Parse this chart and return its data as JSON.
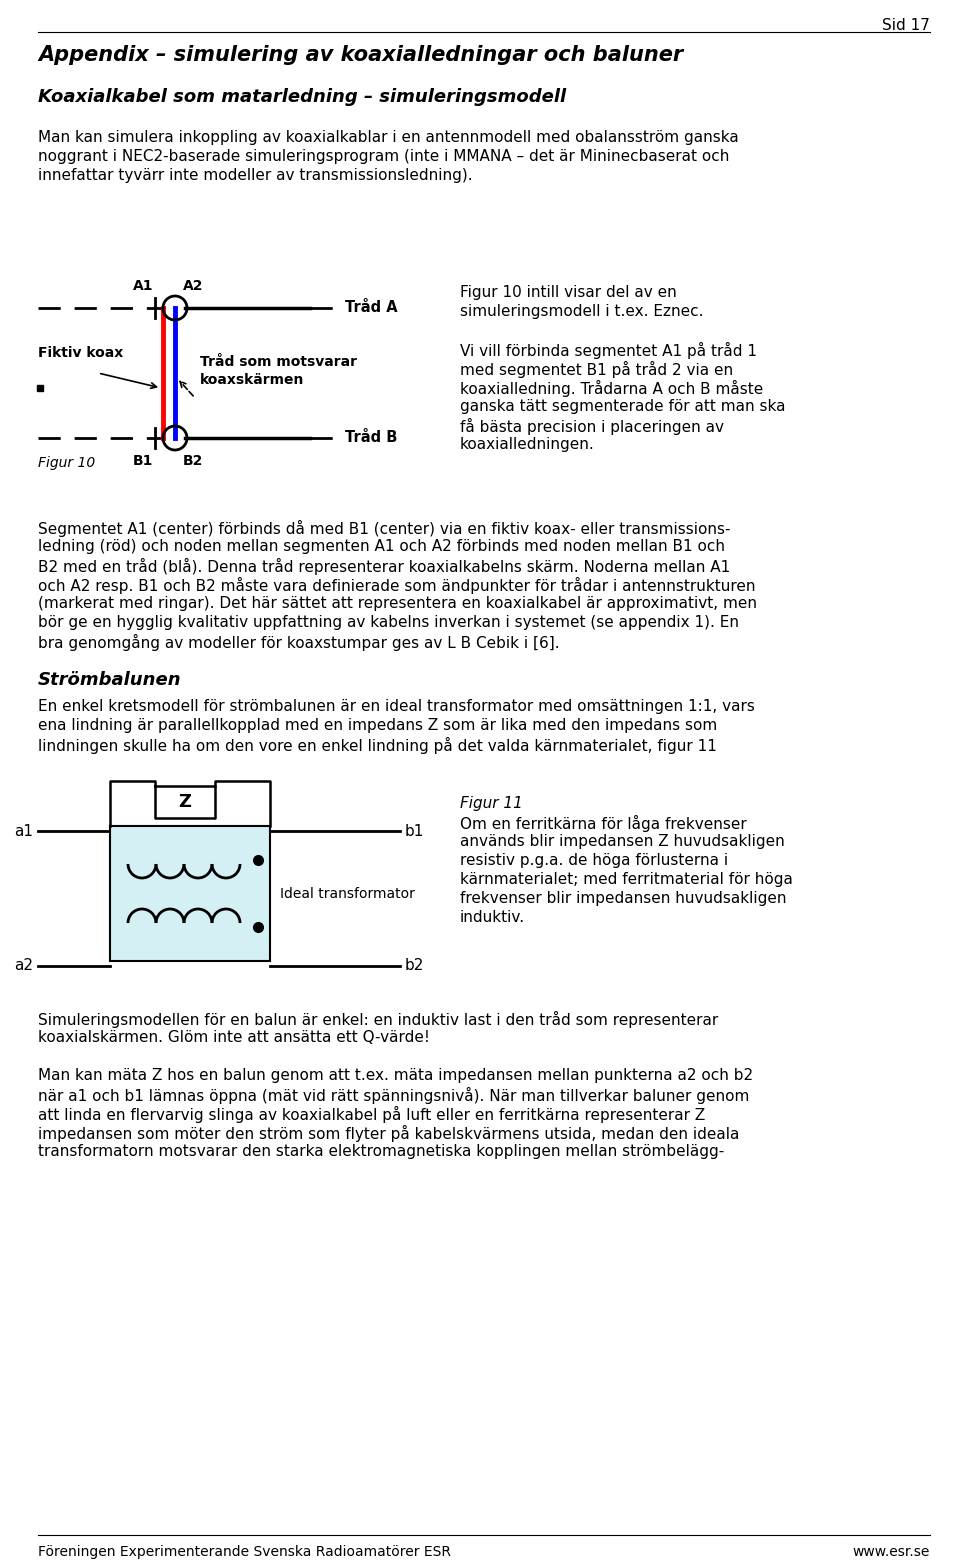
{
  "page_title": "Appendix – simulering av koaxialledningar och baluner",
  "subtitle": "Koaxialkabel som matarledning – simuleringsmodell",
  "page_number": "Sid 17",
  "body_text_1_lines": [
    "Man kan simulera inkoppling av koaxialkablar i en antennmodell med obalansström ganska",
    "noggrant i NEC2-baserade simuleringsprogram (inte i MMANA – det är Mininecbaserat och",
    "innefattar tyvärr inte modeller av transmissionsledning)."
  ],
  "fig10_caption_right_lines": [
    "Figur 10 intill visar del av en",
    "simuleringsmodell i t.ex. Eznec.",
    "",
    "Vi vill förbinda segmentet A1 på tråd 1",
    "med segmentet B1 på tråd 2 via en",
    "koaxialledning. Trådarna A och B måste",
    "ganska tätt segmenterade för att man ska",
    "få bästa precision i placeringen av",
    "koaxialledningen."
  ],
  "body_text_2_lines": [
    "Segmentet A1 (center) förbinds då med B1 (center) via en fiktiv koax- eller transmissions-",
    "ledning (röd) och noden mellan segmenten A1 och A2 förbinds med noden mellan B1 och",
    "B2 med en tråd (blå). Denna tråd representerar koaxialkabelns skärm. Noderna mellan A1",
    "och A2 resp. B1 och B2 måste vara definierade som ändpunkter för trådar i antennstrukturen",
    "(markerat med ringar). Det här sättet att representera en koaxialkabel är approximativt, men",
    "bör ge en hygglig kvalitativ uppfattning av kabelns inverkan i systemet (se appendix 1). En",
    "bra genomgång av modeller för koaxstumpar ges av L B Cebik i [6]."
  ],
  "strombalunen_title": "Strömbalunen",
  "body_text_3_lines": [
    "En enkel kretsmodell för strömbalunen är en ideal transformator med omsättningen 1:1, vars",
    "ena lindning är parallellkopplad med en impedans Z som är lika med den impedans som",
    "lindningen skulle ha om den vore en enkel lindning på det valda kärnmaterialet, figur 11"
  ],
  "fig11_caption_lines": [
    "Figur 11",
    "Om en ferritkärna för låga frekvenser",
    "används blir impedansen Z huvudsakligen",
    "resistiv p.g.a. de höga förlusterna i",
    "kärnmaterialet; med ferritmaterial för höga",
    "frekvenser blir impedansen huvudsakligen",
    "induktiv."
  ],
  "body_text_4_lines": [
    "Simuleringsmodellen för en balun är enkel: en induktiv last i den tråd som representerar",
    "koaxialskärmen. Glöm inte att ansätta ett Q-värde!"
  ],
  "body_text_5_lines": [
    "Man kan mäta Z hos en balun genom att t.ex. mäta impedansen mellan punkterna a2 och b2",
    "när a1 och b1 lämnas öppna (mät vid rätt spänningsnivå). När man tillverkar baluner genom",
    "att linda en flervarvig slinga av koaxialkabel på luft eller en ferritkärna representerar Z",
    "impedansen som möter den ström som flyter på kabelskvärmens utsida, medan den ideala",
    "transformatorn motsvarar den starka elektromagnetiska kopplingen mellan strömbelägg-"
  ],
  "footer_left": "Föreningen Experimenterande Svenska Radioamatörer ESR",
  "footer_right": "www.esr.se",
  "bg_color": "#ffffff"
}
